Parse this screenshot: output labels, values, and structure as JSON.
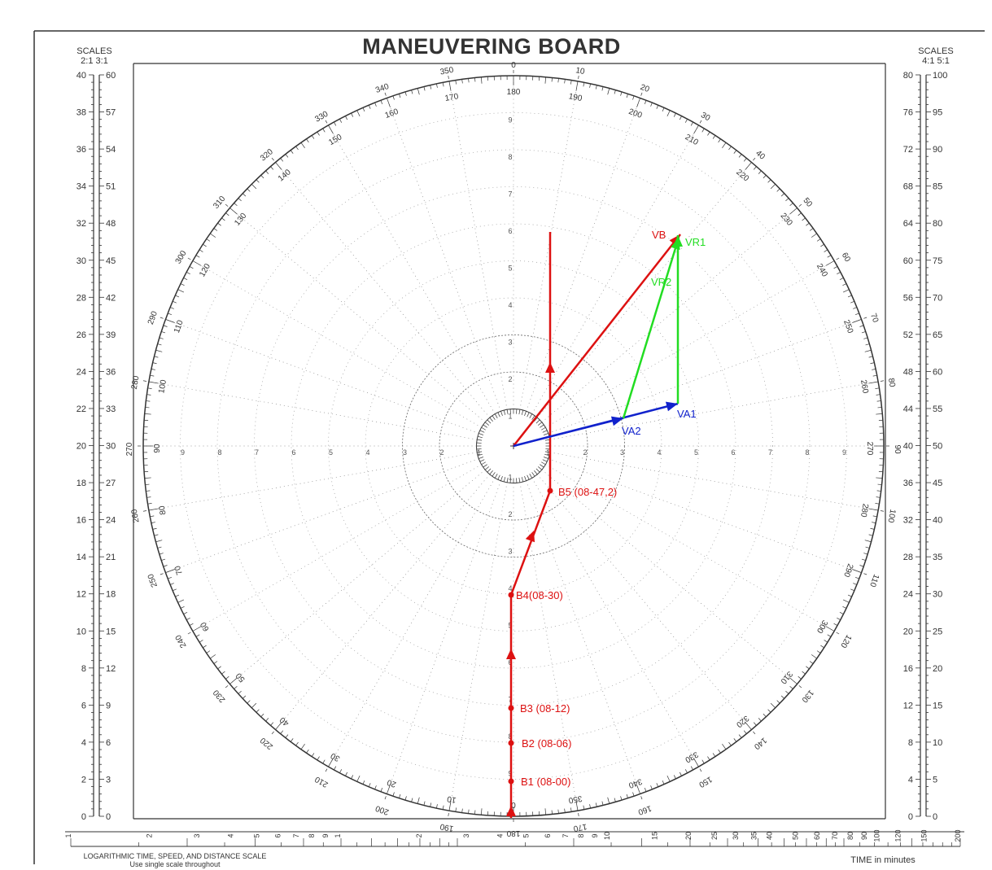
{
  "title": "MANEUVERING BOARD",
  "left_scales": {
    "heading": "SCALES",
    "ratios": "2:1  3:1",
    "scale_a": [
      "0",
      "2",
      "4",
      "6",
      "8",
      "10",
      "12",
      "14",
      "16",
      "18",
      "20",
      "22",
      "24",
      "26",
      "28",
      "30",
      "32",
      "34",
      "36",
      "38",
      "40"
    ],
    "scale_b": [
      "0",
      "3",
      "6",
      "9",
      "12",
      "15",
      "18",
      "21",
      "24",
      "27",
      "30",
      "33",
      "36",
      "39",
      "42",
      "45",
      "48",
      "51",
      "54",
      "57",
      "60"
    ]
  },
  "right_scales": {
    "heading": "SCALES",
    "ratios": "4:1   5:1",
    "scale_a": [
      "0",
      "4",
      "8",
      "12",
      "16",
      "20",
      "24",
      "28",
      "32",
      "36",
      "40",
      "44",
      "48",
      "52",
      "56",
      "60",
      "64",
      "68",
      "72",
      "76",
      "80"
    ],
    "scale_b": [
      "0",
      "5",
      "10",
      "15",
      "20",
      "25",
      "30",
      "35",
      "40",
      "45",
      "50",
      "55",
      "60",
      "65",
      "70",
      "75",
      "80",
      "85",
      "90",
      "95",
      "100"
    ]
  },
  "range_labels": [
    "1",
    "2",
    "3",
    "4",
    "5",
    "6",
    "7",
    "8",
    "9"
  ],
  "outer_bearings": [
    "0",
    "10",
    "20",
    "30",
    "40",
    "50",
    "60",
    "70",
    "80",
    "90",
    "100",
    "110",
    "120",
    "130",
    "140",
    "150",
    "160",
    "170",
    "180",
    "190",
    "200",
    "210",
    "220",
    "230",
    "240",
    "250",
    "260",
    "270",
    "280",
    "290",
    "300",
    "310",
    "320",
    "330",
    "340",
    "350"
  ],
  "inner_bearings": [
    "180",
    "190",
    "200",
    "210",
    "220",
    "230",
    "240",
    "250",
    "260",
    "270",
    "280",
    "290",
    "300",
    "310",
    "320",
    "330",
    "340",
    "350",
    "0",
    "10",
    "20",
    "30",
    "40",
    "50",
    "60",
    "70",
    "80",
    "90",
    "100",
    "110",
    "120",
    "130",
    "140",
    "150",
    "160",
    "170"
  ],
  "vectors": {
    "vb": {
      "label": "VB",
      "color": "#dd1111"
    },
    "vr1": {
      "label": "VR1",
      "color": "#22dd22"
    },
    "vr2": {
      "label": "VR2",
      "color": "#22dd22"
    },
    "va1": {
      "label": "VA1",
      "color": "#1122cc"
    },
    "va2": {
      "label": "VA2",
      "color": "#1122cc"
    }
  },
  "track_color": "#dd1111",
  "track_points": [
    {
      "label": "B1 (08-00)"
    },
    {
      "label": "B2 (08-06)"
    },
    {
      "label": "B3 (08-12)"
    },
    {
      "label": "B4(08-30)"
    },
    {
      "label": "B5 (08-47,2)"
    }
  ],
  "footer": {
    "log_scale_title": "LOGARITHMIC TIME, SPEED, AND DISTANCE SCALE",
    "log_scale_note": "Use single scale throughout",
    "time_label": "TIME  in minutes",
    "log_ticks": [
      "1",
      "2",
      "3",
      "4",
      "5",
      "6",
      "7",
      "8",
      "9",
      "1",
      "2",
      "3",
      "4",
      "5",
      "6",
      "7",
      "8",
      "9",
      "10",
      "15",
      "20",
      "25",
      "30",
      "35",
      "40",
      "50",
      "60",
      "70",
      "80",
      "90",
      "100",
      "120",
      "150",
      "200"
    ]
  }
}
